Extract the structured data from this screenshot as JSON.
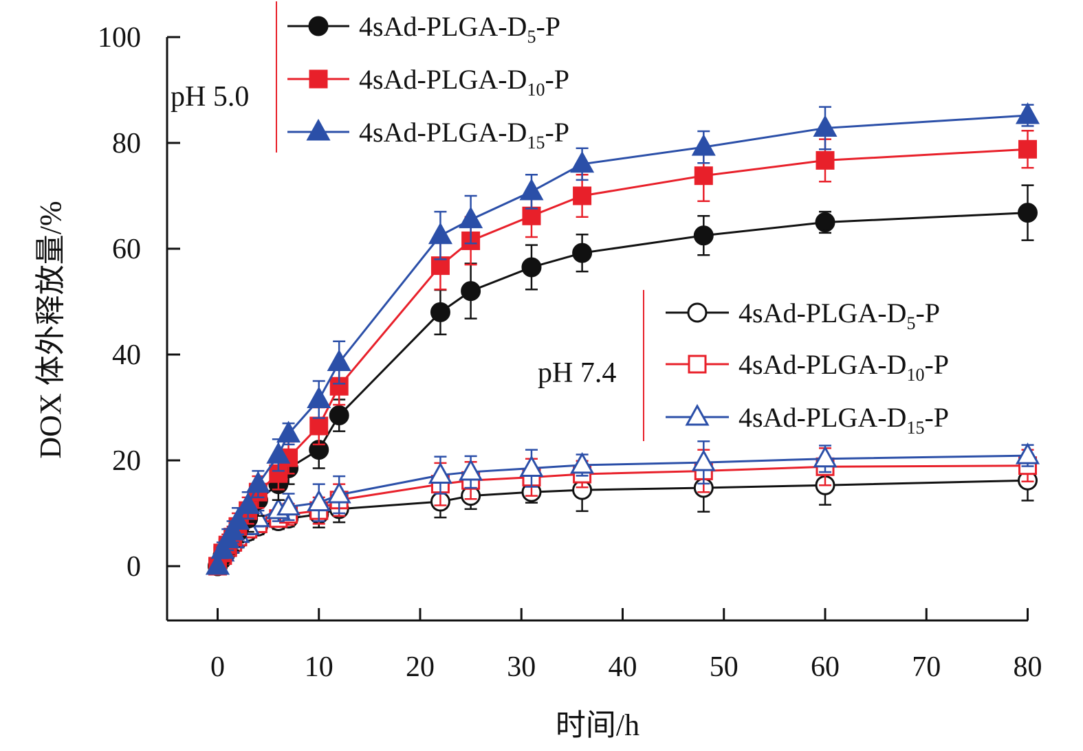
{
  "chart_data": {
    "type": "line",
    "title": "",
    "xlabel": "时间/h",
    "ylabel": "DOX 体外释放量/%",
    "xlim": [
      -5,
      80
    ],
    "ylim": [
      -10,
      100
    ],
    "xticks": [
      0,
      10,
      20,
      30,
      40,
      50,
      60,
      70,
      80
    ],
    "yticks": [
      0,
      20,
      40,
      60,
      80,
      100
    ],
    "x": [
      0,
      0.5,
      1,
      1.5,
      2,
      3,
      4,
      6,
      7,
      10,
      12,
      22,
      25,
      31,
      36,
      48,
      60,
      80
    ],
    "groups": [
      {
        "name": "pH 5.0",
        "legend_position": "top-left"
      },
      {
        "name": "pH 7.4",
        "legend_position": "center-right"
      }
    ],
    "series": [
      {
        "name": "4sAd-PLGA-D5-P",
        "label_main": "4sAd-PLGA-D",
        "label_sub": "5",
        "label_tail": "-P",
        "group": "pH 5.0",
        "color": "#111111",
        "marker": "circle",
        "filled": true,
        "values": [
          0,
          2,
          3.5,
          5,
          6.5,
          9,
          12.5,
          15.5,
          18.5,
          22,
          28.5,
          48,
          52,
          56.5,
          59.2,
          62.5,
          65,
          66.8
        ],
        "errors": [
          0.5,
          1.5,
          2,
          2,
          2,
          2.5,
          3,
          3,
          3,
          3.5,
          3,
          4.2,
          5.2,
          4.2,
          3.5,
          3.7,
          2,
          5.2
        ]
      },
      {
        "name": "4sAd-PLGA-D10-P",
        "label_main": "4sAd-PLGA-D",
        "label_sub": "10",
        "label_tail": "-P",
        "group": "pH 5.0",
        "color": "#e8202a",
        "marker": "square",
        "filled": true,
        "values": [
          0,
          2.5,
          4,
          5.5,
          7.5,
          10.5,
          14,
          17.5,
          20.5,
          26.5,
          34,
          56.8,
          61.5,
          66.2,
          70,
          73.8,
          76.7,
          78.8
        ],
        "errors": [
          0.5,
          1.5,
          2,
          2,
          2.5,
          2.5,
          3,
          3,
          3,
          3.5,
          3.5,
          4.5,
          4.5,
          4,
          4,
          4.8,
          4,
          3.5
        ]
      },
      {
        "name": "4sAd-PLGA-D15-P",
        "label_main": "4sAd-PLGA-D",
        "label_sub": "15",
        "label_tail": "-P",
        "group": "pH 5.0",
        "color": "#2b4fa8",
        "marker": "triangle",
        "filled": true,
        "values": [
          0,
          3,
          5,
          6.5,
          8.5,
          11.5,
          15.5,
          21,
          25,
          31.5,
          38.5,
          62.5,
          65.5,
          70.8,
          76,
          79.2,
          82.8,
          85.2
        ],
        "errors": [
          0.5,
          1.5,
          2,
          2,
          2.5,
          2.5,
          2.5,
          3,
          2,
          3.5,
          4,
          4.5,
          4.5,
          3.2,
          3,
          3,
          4,
          2
        ]
      },
      {
        "name": "4sAd-PLGA-D5-P",
        "label_main": "4sAd-PLGA-D",
        "label_sub": "5",
        "label_tail": "-P",
        "group": "pH 7.4",
        "color": "#111111",
        "marker": "circle",
        "filled": false,
        "values": [
          0,
          1.5,
          3,
          4,
          5,
          6.5,
          7.5,
          8.5,
          9,
          9.8,
          10.8,
          12.2,
          13.3,
          14,
          14.4,
          14.8,
          15.3,
          16.2
        ],
        "errors": [
          0.5,
          1.5,
          1.5,
          1.5,
          1.5,
          1.5,
          1.5,
          1.5,
          1.5,
          2.5,
          2.5,
          3,
          2.5,
          2,
          4,
          4.5,
          3.7,
          3.8
        ]
      },
      {
        "name": "4sAd-PLGA-D10-P",
        "label_main": "4sAd-PLGA-D",
        "label_sub": "10",
        "label_tail": "-P",
        "group": "pH 7.4",
        "color": "#e8202a",
        "marker": "square",
        "filled": false,
        "values": [
          0,
          2,
          3.5,
          4.5,
          5.5,
          7,
          8,
          9,
          9.8,
          10.5,
          12.5,
          15.5,
          16.2,
          16.8,
          17.4,
          18,
          18.8,
          19
        ],
        "errors": [
          0.5,
          1.5,
          1.5,
          1.5,
          1.5,
          1.5,
          1.5,
          1.5,
          2,
          2.5,
          3,
          4,
          3.5,
          3.5,
          2.5,
          4,
          3.5,
          3
        ]
      },
      {
        "name": "4sAd-PLGA-D15-P",
        "label_main": "4sAd-PLGA-D",
        "label_sub": "15",
        "label_tail": "-P",
        "group": "pH 7.4",
        "color": "#2b4fa8",
        "marker": "triangle",
        "filled": false,
        "values": [
          0,
          2.5,
          4,
          5,
          6,
          7.5,
          9,
          10.5,
          11.2,
          12,
          13.5,
          17.2,
          17.8,
          18.5,
          19.1,
          19.6,
          20.3,
          20.9
        ],
        "errors": [
          0.5,
          1.5,
          1.5,
          1.5,
          1.5,
          1.5,
          1.5,
          2,
          2.5,
          3.5,
          3.5,
          3.5,
          3,
          3.5,
          2,
          4,
          2.5,
          2
        ]
      }
    ]
  }
}
